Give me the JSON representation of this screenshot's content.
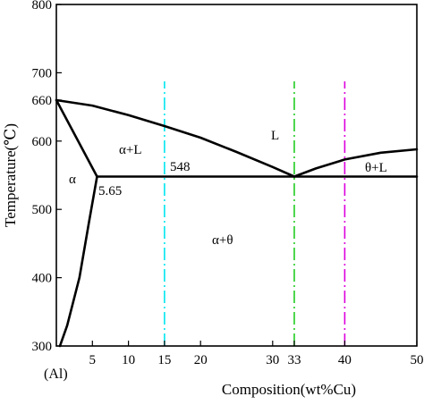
{
  "diagram": {
    "y_axis_label": "Temperature(℃)",
    "x_axis_label": "Composition(wt%Cu)",
    "origin_label": "(Al)",
    "y_ticks": [
      {
        "value": 300,
        "label": "300"
      },
      {
        "value": 400,
        "label": "400"
      },
      {
        "value": 500,
        "label": "500"
      },
      {
        "value": 600,
        "label": "600"
      },
      {
        "value": 660,
        "label": "660"
      },
      {
        "value": 700,
        "label": "700"
      },
      {
        "value": 800,
        "label": "800"
      }
    ],
    "x_ticks": [
      {
        "value": 5,
        "label": "5"
      },
      {
        "value": 10,
        "label": "10"
      },
      {
        "value": 15,
        "label": "15"
      },
      {
        "value": 20,
        "label": "20"
      },
      {
        "value": 30,
        "label": "30"
      },
      {
        "value": 33,
        "label": "33"
      },
      {
        "value": 40,
        "label": "40"
      },
      {
        "value": 50,
        "label": "50"
      }
    ],
    "x_range": [
      0,
      50
    ],
    "y_range": [
      300,
      800
    ],
    "region_labels": {
      "alpha_l": "α+L",
      "l": "L",
      "alpha": "α",
      "theta_l": "θ+L",
      "alpha_theta": "α+θ",
      "eutectic_temp": "548",
      "solubility": "5.65"
    },
    "curves": {
      "liquidus_al": [
        [
          0,
          660
        ],
        [
          5,
          652
        ],
        [
          10,
          638
        ],
        [
          15,
          622
        ],
        [
          20,
          605
        ],
        [
          25,
          584
        ],
        [
          30,
          562
        ],
        [
          33,
          548
        ]
      ],
      "liquidus_theta": [
        [
          33,
          548
        ],
        [
          36,
          560
        ],
        [
          40,
          573
        ],
        [
          45,
          583
        ],
        [
          50,
          588
        ]
      ],
      "solidus": [
        [
          0,
          660
        ],
        [
          5.65,
          548
        ]
      ],
      "solvus": [
        [
          5.65,
          548
        ],
        [
          4.5,
          480
        ],
        [
          3.2,
          400
        ],
        [
          1.5,
          330
        ],
        [
          0.5,
          300
        ]
      ],
      "eutectic_line": [
        [
          5.65,
          548
        ],
        [
          50,
          548
        ]
      ]
    },
    "composition_lines": [
      {
        "x": 15,
        "color": "#00e5ee"
      },
      {
        "x": 33,
        "color": "#22cc22"
      },
      {
        "x": 40,
        "color": "#dd00dd"
      }
    ]
  }
}
